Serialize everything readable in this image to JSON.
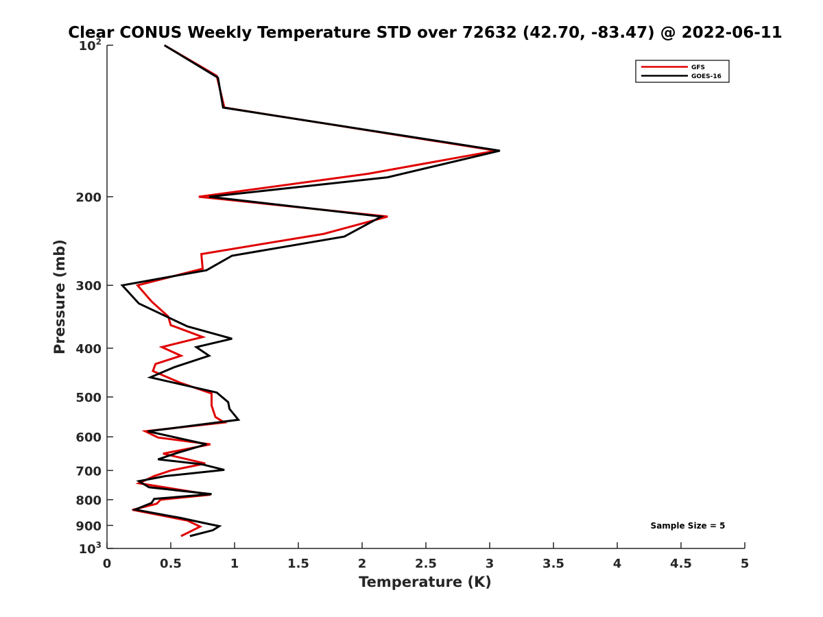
{
  "chart_data": {
    "type": "line",
    "title": "Clear CONUS Weekly Temperature STD over 72632 (42.70, -83.47) @ 2022-06-11",
    "xlabel": "Temperature (K)",
    "ylabel": "Pressure (mb)",
    "xlim": [
      0,
      5
    ],
    "ylim": [
      100,
      1000
    ],
    "y_scale": "log",
    "y_reversed": true,
    "x_ticks": [
      "0",
      "0.5",
      "1",
      "1.5",
      "2",
      "2.5",
      "3",
      "3.5",
      "4",
      "4.5",
      "5"
    ],
    "y_ticks": [
      {
        "value": 100,
        "base": "10",
        "exp": "2"
      },
      {
        "value": 200,
        "base": "200",
        "exp": ""
      },
      {
        "value": 300,
        "base": "300",
        "exp": ""
      },
      {
        "value": 400,
        "base": "400",
        "exp": ""
      },
      {
        "value": 500,
        "base": "500",
        "exp": ""
      },
      {
        "value": 600,
        "base": "600",
        "exp": ""
      },
      {
        "value": 700,
        "base": "700",
        "exp": ""
      },
      {
        "value": 800,
        "base": "800",
        "exp": ""
      },
      {
        "value": 900,
        "base": "900",
        "exp": ""
      },
      {
        "value": 1000,
        "base": "10",
        "exp": "3"
      }
    ],
    "grid": false,
    "legend_position": "top-right",
    "annotation": "Sample Size = 5",
    "series": [
      {
        "name": "GFS",
        "color": "#e00000",
        "points": [
          [
            0.45,
            100
          ],
          [
            0.86,
            115
          ],
          [
            0.92,
            133
          ],
          [
            3.05,
            162
          ],
          [
            2.05,
            180
          ],
          [
            0.72,
            200
          ],
          [
            2.2,
            219
          ],
          [
            1.7,
            237
          ],
          [
            0.74,
            260
          ],
          [
            0.75,
            278
          ],
          [
            0.24,
            300
          ],
          [
            0.35,
            323
          ],
          [
            0.48,
            346
          ],
          [
            0.5,
            360
          ],
          [
            0.75,
            380
          ],
          [
            0.43,
            398
          ],
          [
            0.58,
            414
          ],
          [
            0.38,
            430
          ],
          [
            0.36,
            444
          ],
          [
            0.57,
            468
          ],
          [
            0.82,
            492
          ],
          [
            0.82,
            520
          ],
          [
            0.85,
            548
          ],
          [
            0.92,
            562
          ],
          [
            0.3,
            585
          ],
          [
            0.4,
            602
          ],
          [
            0.81,
            621
          ],
          [
            0.44,
            648
          ],
          [
            0.77,
            678
          ],
          [
            0.5,
            700
          ],
          [
            0.37,
            718
          ],
          [
            0.25,
            742
          ],
          [
            0.81,
            782
          ],
          [
            0.42,
            800
          ],
          [
            0.39,
            815
          ],
          [
            0.2,
            838
          ],
          [
            0.63,
            880
          ],
          [
            0.73,
            905
          ],
          [
            0.58,
            945
          ]
        ]
      },
      {
        "name": "GOES-16",
        "color": "#000000",
        "points": [
          [
            0.45,
            100
          ],
          [
            0.87,
            116
          ],
          [
            0.91,
            133
          ],
          [
            3.08,
            162
          ],
          [
            2.2,
            183
          ],
          [
            0.8,
            200
          ],
          [
            2.15,
            219
          ],
          [
            1.86,
            240
          ],
          [
            0.98,
            262
          ],
          [
            0.78,
            280
          ],
          [
            0.12,
            300
          ],
          [
            0.25,
            326
          ],
          [
            0.63,
            362
          ],
          [
            0.98,
            383
          ],
          [
            0.7,
            398
          ],
          [
            0.8,
            414
          ],
          [
            0.53,
            436
          ],
          [
            0.34,
            457
          ],
          [
            0.86,
            490
          ],
          [
            0.95,
            512
          ],
          [
            0.96,
            528
          ],
          [
            1.03,
            555
          ],
          [
            0.32,
            585
          ],
          [
            0.78,
            621
          ],
          [
            0.55,
            646
          ],
          [
            0.4,
            665
          ],
          [
            0.74,
            680
          ],
          [
            0.92,
            698
          ],
          [
            0.46,
            718
          ],
          [
            0.25,
            735
          ],
          [
            0.33,
            756
          ],
          [
            0.82,
            780
          ],
          [
            0.37,
            797
          ],
          [
            0.35,
            812
          ],
          [
            0.22,
            837
          ],
          [
            0.58,
            870
          ],
          [
            0.76,
            890
          ],
          [
            0.88,
            903
          ],
          [
            0.83,
            920
          ],
          [
            0.65,
            945
          ]
        ]
      }
    ]
  }
}
